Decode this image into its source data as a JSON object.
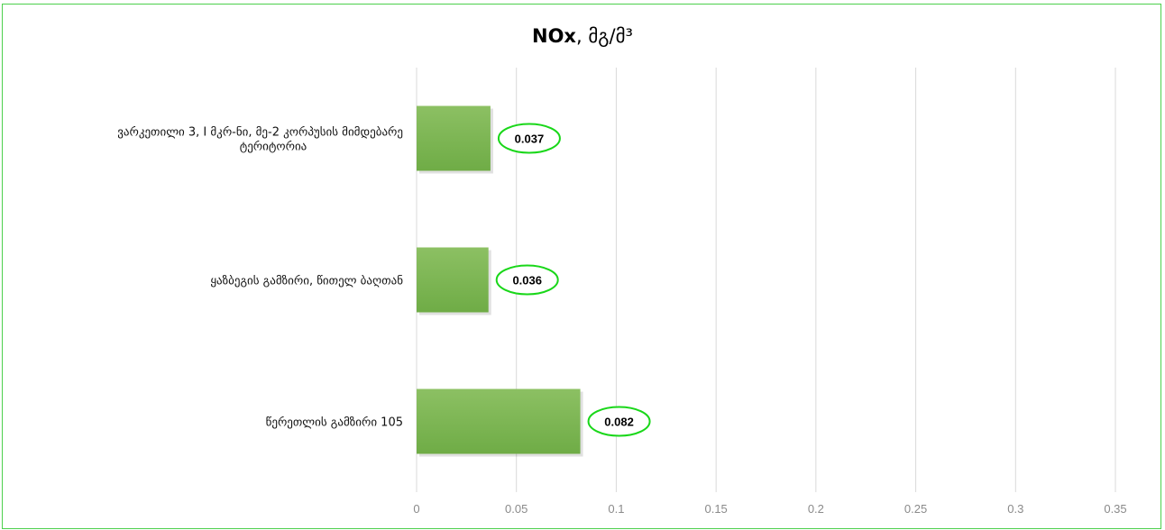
{
  "chart_data": {
    "type": "bar",
    "orientation": "horizontal",
    "title_bold": "NOx",
    "title_rest": ", მგ/მ³",
    "categories": [
      [
        "ვარკეთილი 3, I მკრ-ნი, მე-2 კორპუსის მიმდებარე",
        "ტერიტორია"
      ],
      [
        "ყაზბეგის გამზირი, წითელ ბაღთან"
      ],
      [
        "წერეთლის გამზირი 105"
      ]
    ],
    "values": [
      0.037,
      0.036,
      0.082
    ],
    "value_labels": [
      "0.037",
      "0.036",
      "0.082"
    ],
    "xlim": [
      0,
      0.35
    ],
    "xticks": [
      0,
      0.05,
      0.1,
      0.15,
      0.2,
      0.25,
      0.3,
      0.35
    ],
    "xtick_labels": [
      "0",
      "0.05",
      "0.1",
      "0.15",
      "0.2",
      "0.25",
      "0.3",
      "0.35"
    ],
    "grid": true,
    "bar_color": "#6fac46",
    "bar_color_light": "#8cc063",
    "label_ellipse_color": "#19d719",
    "frame_color": "#4cd04c"
  }
}
